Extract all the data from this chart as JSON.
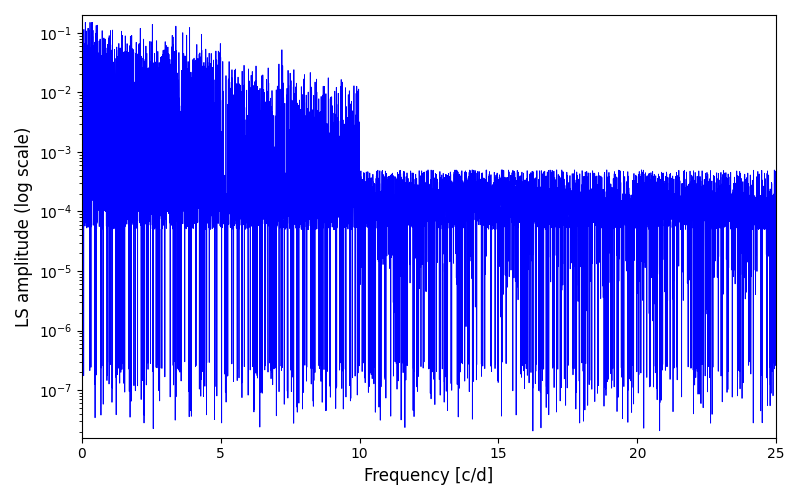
{
  "xlabel": "Frequency [c/d]",
  "ylabel": "LS amplitude (log scale)",
  "line_color": "blue",
  "line_width": 0.6,
  "xlim": [
    0,
    25
  ],
  "ylim_log_min": -7.8,
  "ylim_log_max": -0.7,
  "yscale": "log",
  "freq_max": 25.0,
  "n_points": 8000,
  "seed": 42,
  "background_color": "#ffffff",
  "figsize": [
    8.0,
    5.0
  ],
  "dpi": 100,
  "noise_floor": 0.0001,
  "peak_max": 0.08,
  "peak_decay_scale": 5.0,
  "null_depth": 2e-08
}
